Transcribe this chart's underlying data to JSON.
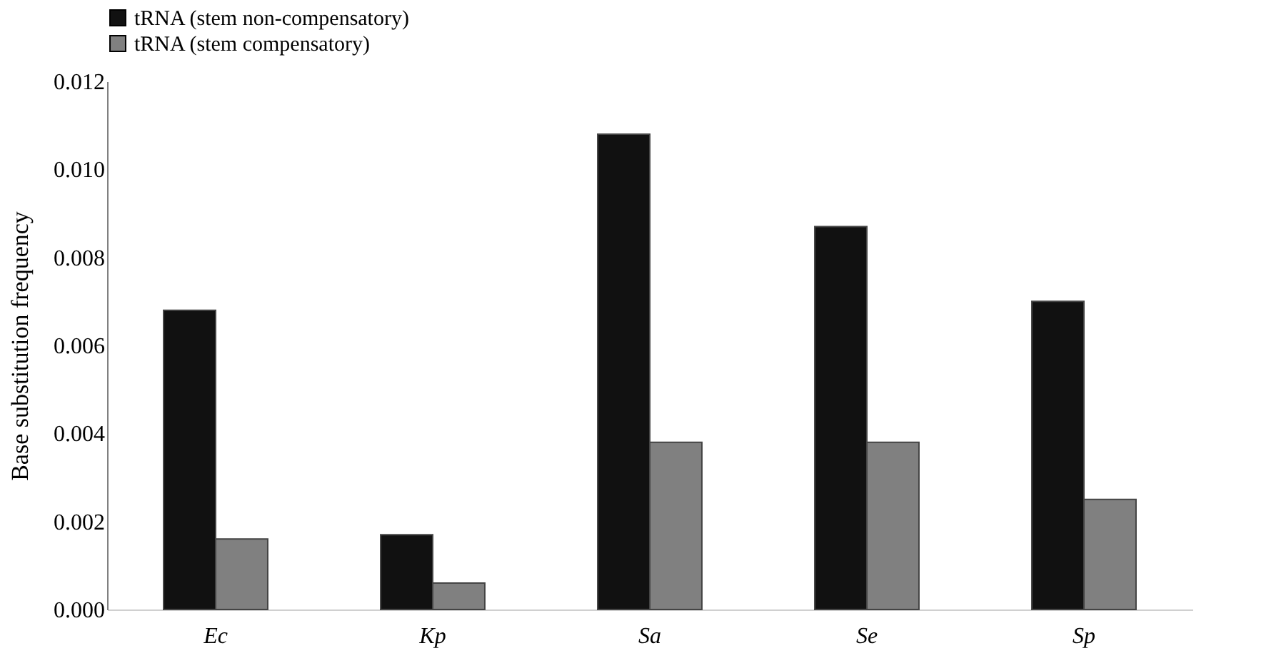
{
  "chart_data": {
    "type": "bar",
    "ylabel": "Base substitution frequency",
    "categories": [
      "Ec",
      "Kp",
      "Sa",
      "Se",
      "Sp"
    ],
    "series": [
      {
        "name": "tRNA (stem non-compensatory)",
        "color": "#111111",
        "values": [
          0.0068,
          0.0017,
          0.0108,
          0.0087,
          0.007
        ]
      },
      {
        "name": "tRNA (stem compensatory)",
        "color": "#808080",
        "values": [
          0.0016,
          0.0006,
          0.0038,
          0.0038,
          0.0025
        ]
      }
    ],
    "ylim": [
      0,
      0.012
    ],
    "yticks": [
      {
        "value": 0,
        "label": "0.000"
      },
      {
        "value": 0.002,
        "label": "0.002"
      },
      {
        "value": 0.004,
        "label": "0.004"
      },
      {
        "value": 0.006,
        "label": "0.006"
      },
      {
        "value": 0.008,
        "label": "0.008"
      },
      {
        "value": 0.01,
        "label": "0.010"
      },
      {
        "value": 0.012,
        "label": "0.012"
      }
    ],
    "grid": false,
    "legend": "top"
  }
}
